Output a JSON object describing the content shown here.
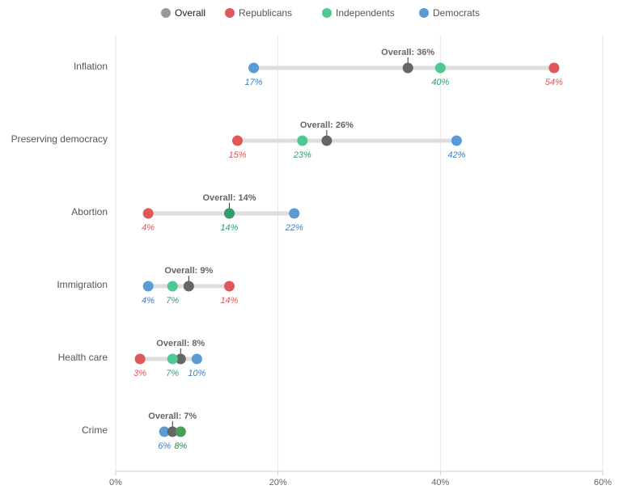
{
  "chart_data": {
    "type": "dot-plot",
    "title": "",
    "xlabel": "",
    "ylabel": "",
    "xlim": [
      0,
      60
    ],
    "x_ticks": [
      0,
      20,
      40,
      60
    ],
    "x_tick_labels": [
      "0%",
      "20%",
      "40%",
      "60%"
    ],
    "grid": true,
    "legend_position": "top-center",
    "overall_label_prefix": "Overall: ",
    "series": [
      {
        "key": "overall",
        "name": "Overall",
        "color": "#666666",
        "legend_color": "#999999"
      },
      {
        "key": "republicans",
        "name": "Republicans",
        "color": "#e15759"
      },
      {
        "key": "independents",
        "name": "Independents",
        "color": "#4ec993",
        "label_color": "#2ea06c"
      },
      {
        "key": "democrats",
        "name": "Democrats",
        "color": "#5b9bd5",
        "label_color": "#3a7fc0"
      }
    ],
    "categories": [
      "Inflation",
      "Preserving democracy",
      "Abortion",
      "Immigration",
      "Health care",
      "Crime"
    ],
    "values": {
      "overall": [
        36,
        26,
        14,
        9,
        8,
        7
      ],
      "republicans": [
        54,
        15,
        4,
        14,
        3,
        8
      ],
      "independents": [
        40,
        23,
        14,
        7,
        7,
        8
      ],
      "democrats": [
        17,
        42,
        22,
        4,
        10,
        6
      ]
    },
    "value_labels": {
      "republicans": [
        "54%",
        "15%",
        "4%",
        "14%",
        "3%",
        ""
      ],
      "independents": [
        "40%",
        "23%",
        "14%",
        "7%",
        "7%",
        "8%"
      ],
      "democrats": [
        "17%",
        "42%",
        "22%",
        "4%",
        "10%",
        "6%"
      ]
    },
    "overall_labels": [
      "Overall: 36%",
      "Overall: 26%",
      "Overall: 14%",
      "Overall: 9%",
      "Overall: 8%",
      "Overall: 7%"
    ]
  }
}
